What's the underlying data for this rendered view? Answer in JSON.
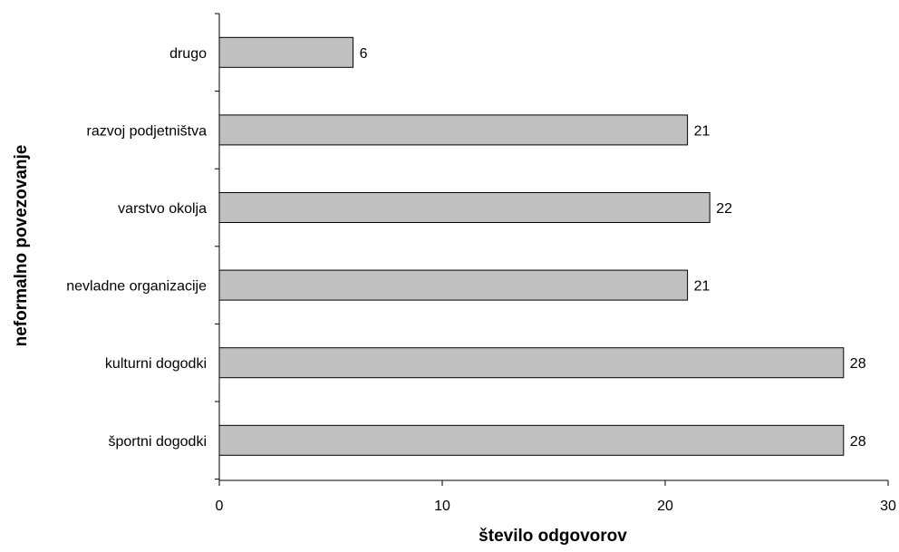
{
  "chart_data": {
    "type": "bar",
    "orientation": "horizontal",
    "categories": [
      "drugo",
      "razvoj podjetništva",
      "varstvo okolja",
      "nevladne organizacije",
      "kulturni dogodki",
      "športni dogodki"
    ],
    "values": [
      6,
      21,
      22,
      21,
      28,
      28
    ],
    "title": "",
    "xlabel": "število odgovorov",
    "ylabel": "neformalno povezovanje",
    "xlim": [
      0,
      30
    ],
    "xticks": [
      0,
      10,
      20,
      30
    ],
    "xtick_labels": [
      "0",
      "10",
      "20",
      "30"
    ],
    "data_labels": [
      "6",
      "21",
      "22",
      "21",
      "28",
      "28"
    ],
    "grid": false,
    "legend": "none",
    "colors": {
      "bar_fill": "#c0c0c0",
      "bar_stroke": "#000000",
      "axis": "#000000"
    }
  }
}
